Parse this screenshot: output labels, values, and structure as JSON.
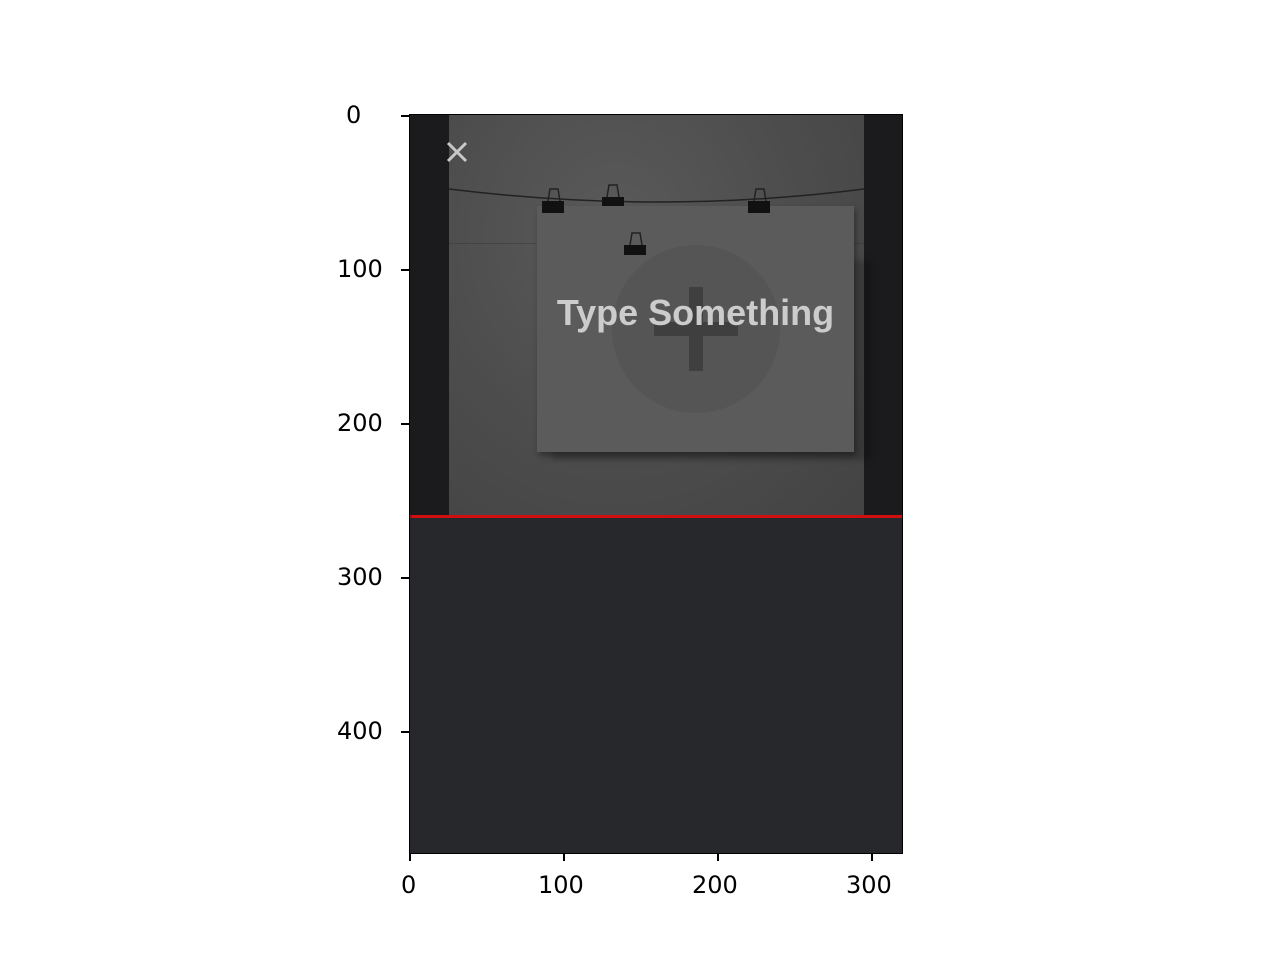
{
  "app": {
    "prompt_text": "Type Something",
    "close_icon": "close-icon",
    "add_icon": "plus-icon",
    "colors": {
      "frame_bg": "#1b1b1d",
      "wall": "#4c4c4c",
      "paper": "#5b5b5b",
      "bottom_panel": "#27282b",
      "accent_line": "#d01010",
      "text": "#cccccc"
    }
  },
  "axes": {
    "x_ticks": [
      "0",
      "100",
      "200",
      "300"
    ],
    "y_ticks": [
      "0",
      "100",
      "200",
      "300",
      "400"
    ]
  }
}
